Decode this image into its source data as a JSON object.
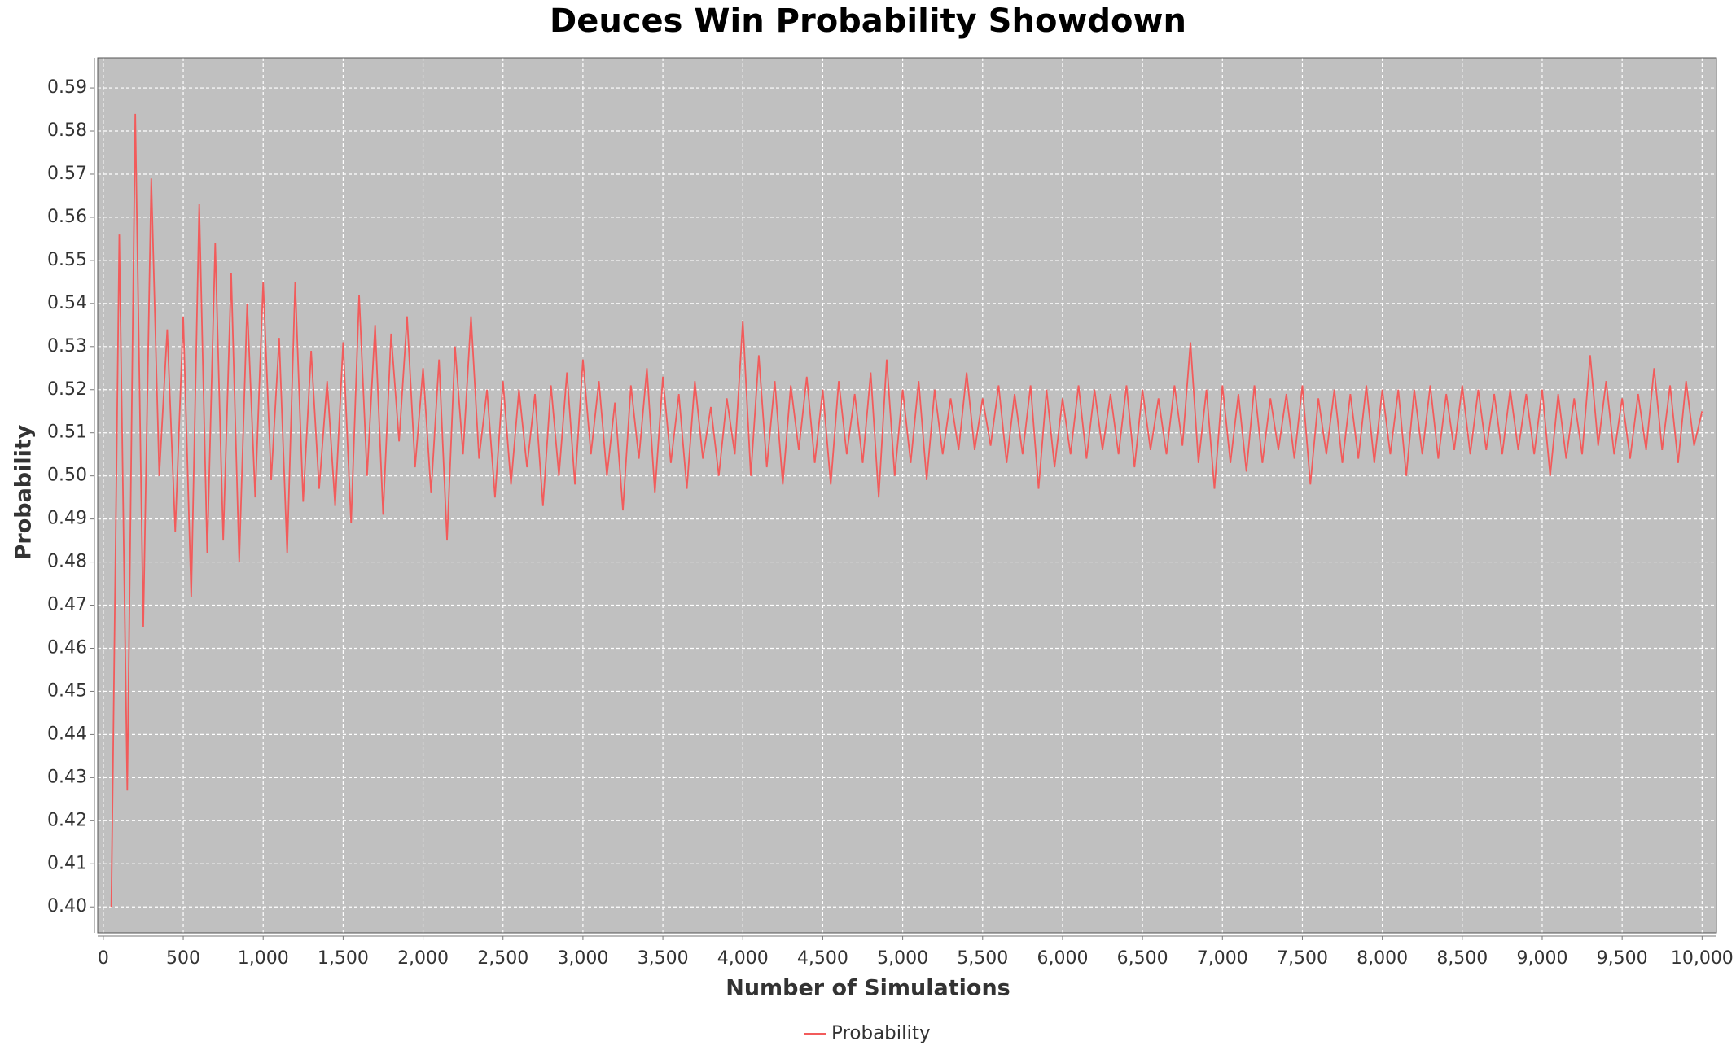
{
  "chart_data": {
    "type": "line",
    "title": "Deuces Win Probability Showdown",
    "x_label": "Number of Simulations",
    "y_label": "Probability",
    "x": [
      50,
      100,
      150,
      200,
      250,
      300,
      350,
      400,
      450,
      500,
      550,
      600,
      650,
      700,
      750,
      800,
      850,
      900,
      950,
      1000,
      1050,
      1100,
      1150,
      1200,
      1250,
      1300,
      1350,
      1400,
      1450,
      1500,
      1550,
      1600,
      1650,
      1700,
      1750,
      1800,
      1850,
      1900,
      1950,
      2000,
      2050,
      2100,
      2150,
      2200,
      2250,
      2300,
      2350,
      2400,
      2450,
      2500,
      2550,
      2600,
      2650,
      2700,
      2750,
      2800,
      2850,
      2900,
      2950,
      3000,
      3050,
      3100,
      3150,
      3200,
      3250,
      3300,
      3350,
      3400,
      3450,
      3500,
      3550,
      3600,
      3650,
      3700,
      3750,
      3800,
      3850,
      3900,
      3950,
      4000,
      4050,
      4100,
      4150,
      4200,
      4250,
      4300,
      4350,
      4400,
      4450,
      4500,
      4550,
      4600,
      4650,
      4700,
      4750,
      4800,
      4850,
      4900,
      4950,
      5000,
      5050,
      5100,
      5150,
      5200,
      5250,
      5300,
      5350,
      5400,
      5450,
      5500,
      5550,
      5600,
      5650,
      5700,
      5750,
      5800,
      5850,
      5900,
      5950,
      6000,
      6050,
      6100,
      6150,
      6200,
      6250,
      6300,
      6350,
      6400,
      6450,
      6500,
      6550,
      6600,
      6650,
      6700,
      6750,
      6800,
      6850,
      6900,
      6950,
      7000,
      7050,
      7100,
      7150,
      7200,
      7250,
      7300,
      7350,
      7400,
      7450,
      7500,
      7550,
      7600,
      7650,
      7700,
      7750,
      7800,
      7850,
      7900,
      7950,
      8000,
      8050,
      8100,
      8150,
      8200,
      8250,
      8300,
      8350,
      8400,
      8450,
      8500,
      8550,
      8600,
      8650,
      8700,
      8750,
      8800,
      8850,
      8900,
      8950,
      9000,
      9050,
      9100,
      9150,
      9200,
      9250,
      9300,
      9350,
      9400,
      9450,
      9500,
      9550,
      9600,
      9650,
      9700,
      9750,
      9800,
      9850,
      9900,
      9950,
      10000
    ],
    "series": [
      {
        "name": "Probability",
        "color": "#f25b5b",
        "values": [
          0.4,
          0.556,
          0.427,
          0.584,
          0.465,
          0.569,
          0.5,
          0.534,
          0.487,
          0.537,
          0.472,
          0.563,
          0.482,
          0.554,
          0.485,
          0.547,
          0.48,
          0.54,
          0.495,
          0.545,
          0.499,
          0.532,
          0.482,
          0.545,
          0.494,
          0.529,
          0.497,
          0.522,
          0.493,
          0.531,
          0.489,
          0.542,
          0.5,
          0.535,
          0.491,
          0.533,
          0.508,
          0.537,
          0.502,
          0.525,
          0.496,
          0.527,
          0.485,
          0.53,
          0.505,
          0.537,
          0.504,
          0.52,
          0.495,
          0.522,
          0.498,
          0.52,
          0.502,
          0.519,
          0.493,
          0.521,
          0.5,
          0.524,
          0.498,
          0.527,
          0.505,
          0.522,
          0.5,
          0.517,
          0.492,
          0.521,
          0.504,
          0.525,
          0.496,
          0.523,
          0.503,
          0.519,
          0.497,
          0.522,
          0.504,
          0.516,
          0.5,
          0.518,
          0.505,
          0.536,
          0.5,
          0.528,
          0.502,
          0.522,
          0.498,
          0.521,
          0.506,
          0.523,
          0.503,
          0.52,
          0.498,
          0.522,
          0.505,
          0.519,
          0.503,
          0.524,
          0.495,
          0.527,
          0.5,
          0.52,
          0.503,
          0.522,
          0.499,
          0.52,
          0.505,
          0.518,
          0.506,
          0.524,
          0.506,
          0.518,
          0.507,
          0.521,
          0.503,
          0.519,
          0.505,
          0.521,
          0.497,
          0.52,
          0.502,
          0.518,
          0.505,
          0.521,
          0.504,
          0.52,
          0.506,
          0.519,
          0.505,
          0.521,
          0.502,
          0.52,
          0.506,
          0.518,
          0.505,
          0.521,
          0.507,
          0.531,
          0.503,
          0.52,
          0.497,
          0.521,
          0.503,
          0.519,
          0.501,
          0.521,
          0.503,
          0.518,
          0.506,
          0.519,
          0.504,
          0.521,
          0.498,
          0.518,
          0.505,
          0.52,
          0.503,
          0.519,
          0.504,
          0.521,
          0.503,
          0.52,
          0.505,
          0.52,
          0.5,
          0.52,
          0.505,
          0.521,
          0.504,
          0.519,
          0.506,
          0.521,
          0.505,
          0.52,
          0.506,
          0.519,
          0.505,
          0.52,
          0.506,
          0.519,
          0.505,
          0.52,
          0.5,
          0.519,
          0.504,
          0.518,
          0.505,
          0.528,
          0.507,
          0.522,
          0.505,
          0.518,
          0.504,
          0.519,
          0.506,
          0.525,
          0.506,
          0.521,
          0.503,
          0.522,
          0.507,
          0.515
        ]
      }
    ],
    "xlim": [
      -35,
      10090
    ],
    "ylim": [
      0.394,
      0.597
    ],
    "xticks": [
      0,
      500,
      {
        "value": 1000,
        "label": "1,000"
      },
      {
        "value": 1500,
        "label": "1,500"
      },
      {
        "value": 2000,
        "label": "2,000"
      },
      {
        "value": 2500,
        "label": "2,500"
      },
      {
        "value": 3000,
        "label": "3,000"
      },
      {
        "value": 3500,
        "label": "3,500"
      },
      {
        "value": 4000,
        "label": "4,000"
      },
      {
        "value": 4500,
        "label": "4,500"
      },
      {
        "value": 5000,
        "label": "5,000"
      },
      {
        "value": 5500,
        "label": "5,500"
      },
      {
        "value": 6000,
        "label": "6,000"
      },
      {
        "value": 6500,
        "label": "6,500"
      },
      {
        "value": 7000,
        "label": "7,000"
      },
      {
        "value": 7500,
        "label": "7,500"
      },
      {
        "value": 8000,
        "label": "8,000"
      },
      {
        "value": 8500,
        "label": "8,500"
      },
      {
        "value": 9000,
        "label": "9,000"
      },
      {
        "value": 9500,
        "label": "9,500"
      },
      {
        "value": 10000,
        "label": "10,000"
      }
    ],
    "yticks": [
      {
        "value": 0.4,
        "label": "0.40"
      },
      0.41,
      0.42,
      0.43,
      0.44,
      0.45,
      0.46,
      0.47,
      0.48,
      0.49,
      {
        "value": 0.5,
        "label": "0.50"
      },
      0.51,
      0.52,
      0.53,
      0.54,
      0.55,
      0.56,
      0.57,
      0.58,
      0.59
    ],
    "grid": true,
    "legend": "bottom"
  }
}
